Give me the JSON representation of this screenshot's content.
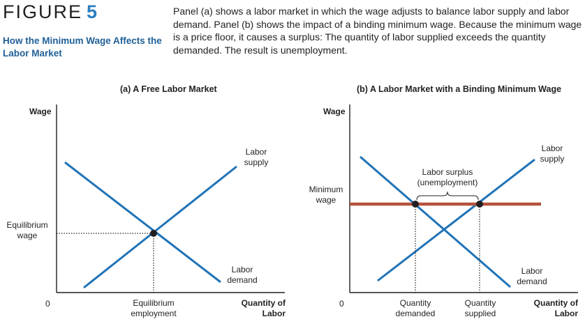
{
  "header": {
    "figure_word": "FIGURE",
    "figure_number": "5",
    "title": "How the Minimum Wage Affects the Labor Market",
    "caption": "Panel (a) shows a labor market in which the wage adjusts to balance labor supply and labor demand. Panel (b) shows the impact of a binding minimum wage. Because the minimum wage is a price floor, it causes a surplus: The quantity of labor supplied exceeds the quantity demanded. The result is unemployment."
  },
  "panel_a": {
    "title": "(a) A Free Labor Market",
    "y_axis_label": "Wage",
    "origin": "0",
    "x_axis_label_line1": "Quantity of",
    "x_axis_label_line2": "Labor",
    "equilibrium_wage_line1": "Equilibrium",
    "equilibrium_wage_line2": "wage",
    "equilibrium_employment_line1": "Equilibrium",
    "equilibrium_employment_line2": "employment",
    "supply_label_line1": "Labor",
    "supply_label_line2": "supply",
    "demand_label_line1": "Labor",
    "demand_label_line2": "demand"
  },
  "panel_b": {
    "title": "(b) A Labor Market with a Binding Minimum Wage",
    "y_axis_label": "Wage",
    "origin": "0",
    "x_axis_label_line1": "Quantity of",
    "x_axis_label_line2": "Labor",
    "minimum_wage_line1": "Minimum",
    "minimum_wage_line2": "wage",
    "surplus_label_line1": "Labor surplus",
    "surplus_label_line2": "(unemployment)",
    "qd_line1": "Quantity",
    "qd_line2": "demanded",
    "qs_line1": "Quantity",
    "qs_line2": "supplied",
    "supply_label_line1": "Labor",
    "supply_label_line2": "supply",
    "demand_label_line1": "Labor",
    "demand_label_line2": "demand"
  },
  "colors": {
    "curve": "#1f73b7",
    "min_wage_line": "#b5523b",
    "point": "#231f20",
    "figure_number": "#2b7fc1",
    "title_blue": "#1f5f97"
  }
}
